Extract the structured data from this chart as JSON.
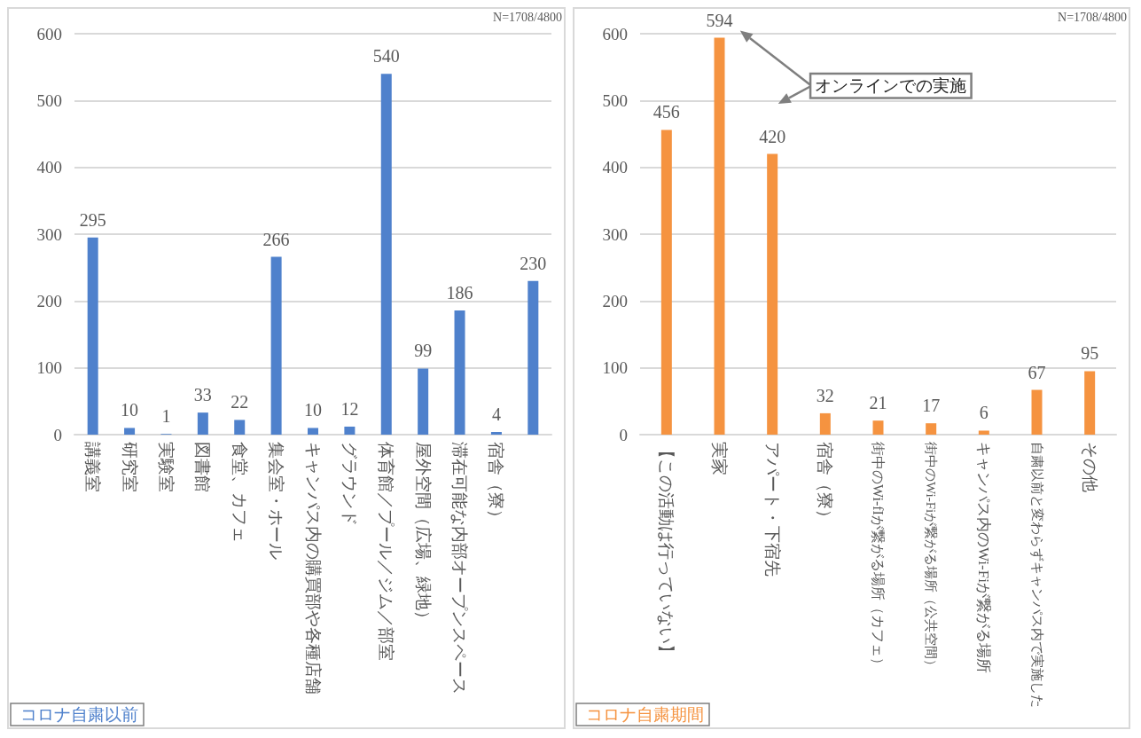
{
  "chart_data": [
    {
      "type": "bar",
      "categories": [
        "講義室",
        "研究室",
        "実験室",
        "図書館",
        "食堂、カフェ",
        "集会室・ホール",
        "キャンパス内の購買部や各種店舗",
        "グラウンド",
        "体育館／プール／ジム／部室",
        "屋外空間（広場、緑地）",
        "滞在可能な内部オープンスペース",
        "宿舎（寮）",
        null
      ],
      "series": [
        {
          "name": "コロナ自粛以前",
          "color": "#4f81cc",
          "values": [
            295,
            10,
            1,
            33,
            22,
            266,
            10,
            12,
            540,
            99,
            186,
            4,
            230
          ]
        }
      ],
      "ylim": [
        0,
        600
      ],
      "yticks": [
        0,
        100,
        200,
        300,
        400,
        500,
        600
      ],
      "grid": "y",
      "data_labels": true,
      "legend": "bottom left",
      "annotations": [
        "N=1708/4800"
      ]
    },
    {
      "type": "bar",
      "categories": [
        "【この活動は行っていない】",
        "実家",
        "アパート・下宿先",
        "宿舎（寮）",
        "街中のWi-fIが繋がる場所（カフェ）",
        "街中のWi-Fiが繋がる場所（公共空間）",
        "キャンパス内のWi-Fiが繋がる場所",
        "自粛以前と変わらずキャンパス内で実施した",
        "その他"
      ],
      "series": [
        {
          "name": "コロナ自粛期間",
          "color": "#f59340",
          "values": [
            456,
            594,
            420,
            32,
            21,
            17,
            6,
            67,
            95
          ]
        }
      ],
      "ylim": [
        0,
        600
      ],
      "yticks": [
        0,
        100,
        200,
        300,
        400,
        500,
        600
      ],
      "grid": "y",
      "data_labels": true,
      "legend": "bottom left",
      "annotations": [
        "N=1708/4800",
        "オンラインでの実施"
      ]
    }
  ]
}
